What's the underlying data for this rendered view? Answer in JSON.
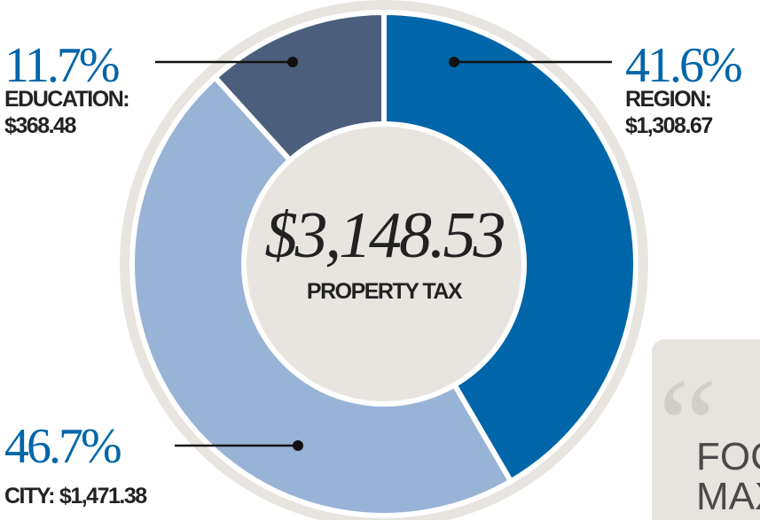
{
  "chart_data": {
    "type": "pie",
    "donut": true,
    "center_label": "$3,148.53",
    "center_sublabel": "PROPERTY TAX",
    "categories": [
      "REGION:",
      "CITY:",
      "EDUCATION:"
    ],
    "values": [
      41.6,
      46.7,
      11.7
    ],
    "value_labels": [
      "41.6%",
      "46.7%",
      "11.7%"
    ],
    "amounts": [
      "$1,308.67",
      "$1,471.38",
      "$368.48"
    ],
    "colors": [
      "#0066a9",
      "#99b3d7",
      "#4b5f7d"
    ]
  },
  "pull_quote": {
    "lines": [
      "FOC",
      "MAX"
    ]
  }
}
